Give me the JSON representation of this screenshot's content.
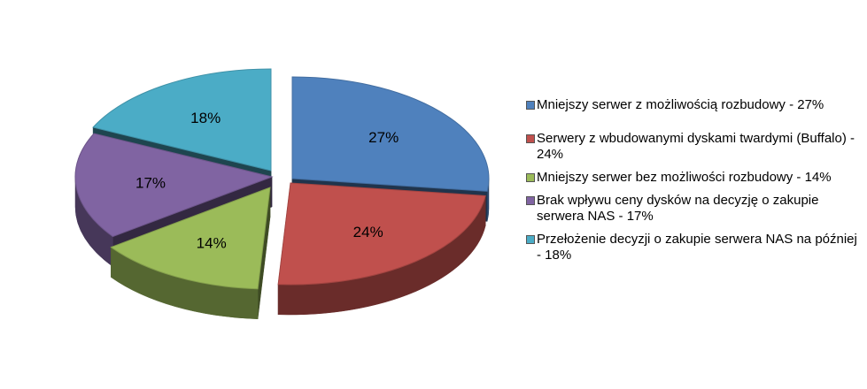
{
  "chart_data": {
    "type": "pie",
    "title": "",
    "legend_position": "right",
    "slices": [
      {
        "label": "Mniejszy serwer z możliwością rozbudowy - 27%",
        "value": 27,
        "value_label": "27%",
        "color": "#4F81BD"
      },
      {
        "label": "Serwery z wbudowanymi dyskami twardymi (Buffalo) - 24%",
        "value": 24,
        "value_label": "24%",
        "color": "#C0504D"
      },
      {
        "label": "Mniejszy serwer bez możliwości rozbudowy - 14%",
        "value": 14,
        "value_label": "14%",
        "color": "#9BBB59"
      },
      {
        "label": "Brak wpływu ceny dysków na decyzję o zakupie serwera NAS - 17%",
        "value": 17,
        "value_label": "17%",
        "color": "#8064A2"
      },
      {
        "label": "Przełożenie decyzji o zakupie serwera NAS na później - 18%",
        "value": 18,
        "value_label": "18%",
        "color": "#4BACC6"
      }
    ]
  }
}
